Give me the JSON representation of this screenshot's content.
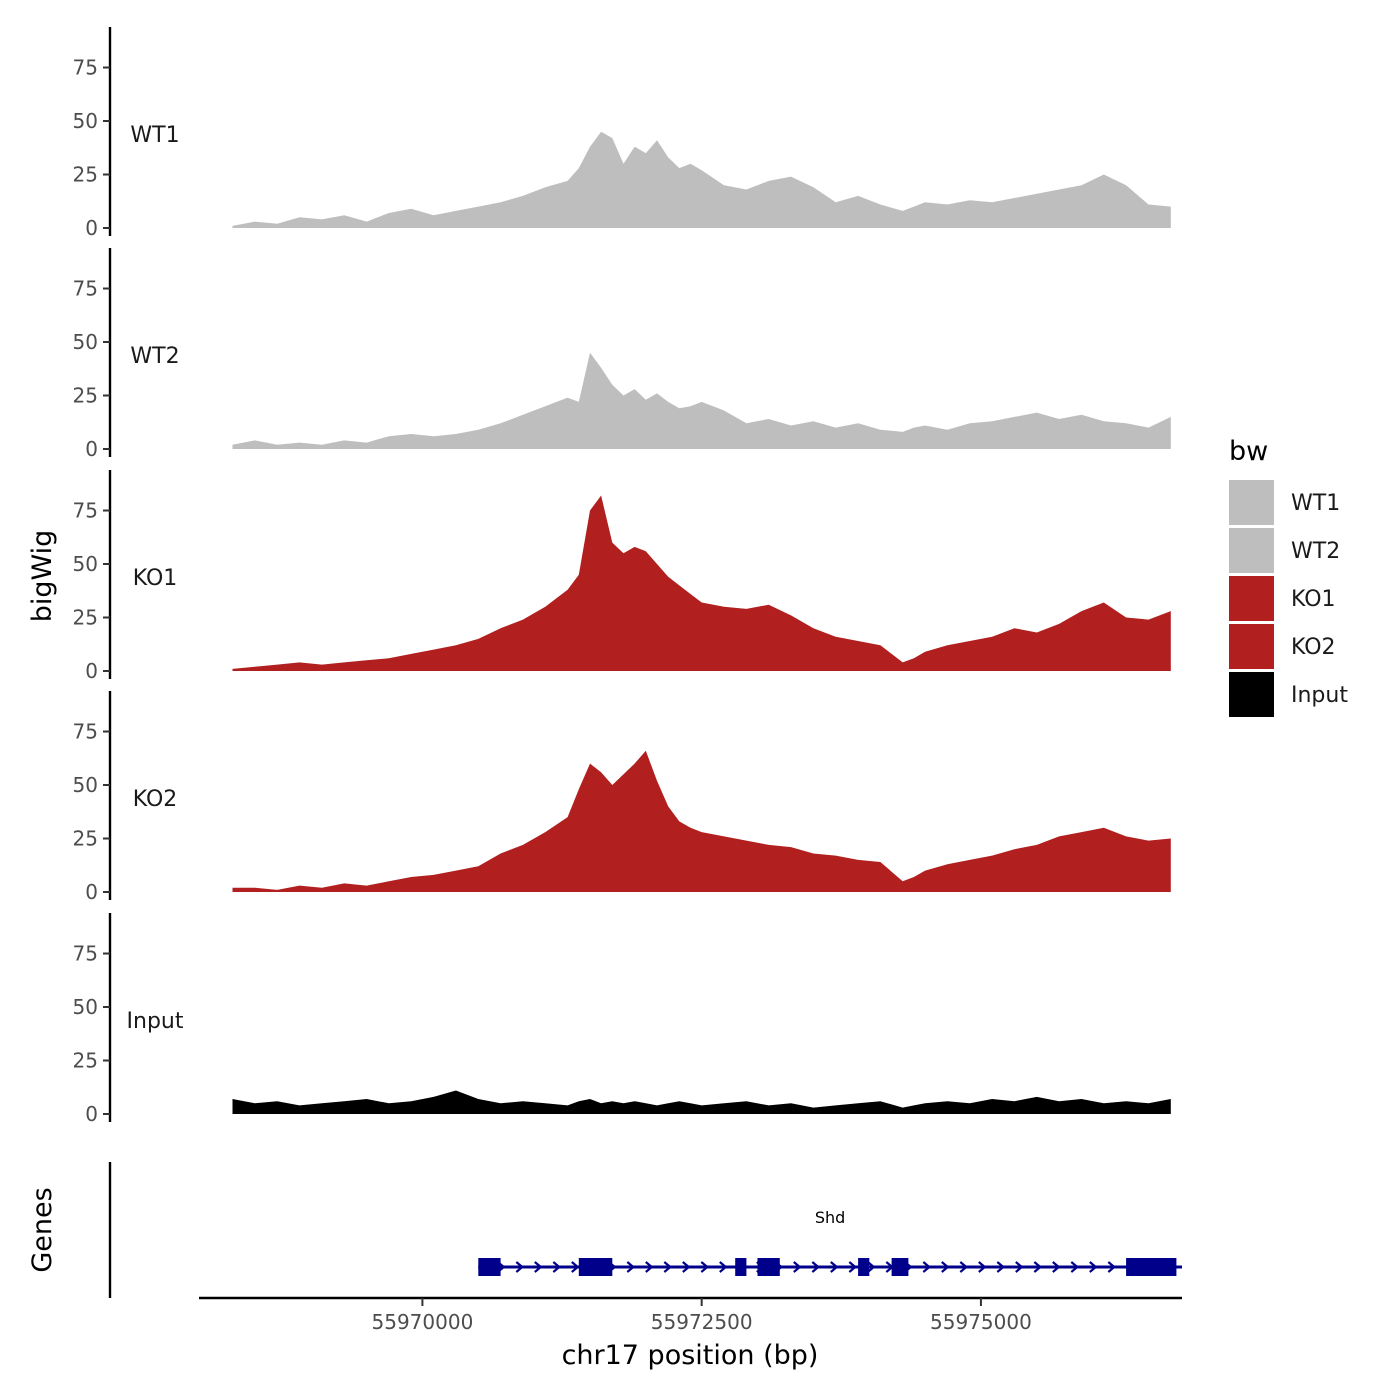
{
  "chart_data": {
    "type": "area",
    "chromosome": "chr17",
    "xlabel": "chr17 position (bp)",
    "ylabel": "bigWig",
    "genes_label": "Genes",
    "xlim": [
      55968000,
      55976800
    ],
    "x_ticks": [
      55970000,
      55972500,
      55975000
    ],
    "x_tick_labels": [
      "55970000",
      "55972500",
      "55975000"
    ],
    "ylim": [
      0,
      93
    ],
    "y_ticks": [
      0,
      25,
      50,
      75
    ],
    "y_tick_labels": [
      "0",
      "25",
      "50",
      "75"
    ],
    "legend": {
      "title": "bw",
      "position": "right",
      "entries": [
        {
          "name": "WT1",
          "color": "#bebebe"
        },
        {
          "name": "WT2",
          "color": "#bebebe"
        },
        {
          "name": "KO1",
          "color": "#b21f1f"
        },
        {
          "name": "KO2",
          "color": "#b21f1f"
        },
        {
          "name": "Input",
          "color": "#000000"
        }
      ]
    },
    "x": [
      55968300,
      55968500,
      55968700,
      55968900,
      55969100,
      55969300,
      55969500,
      55969700,
      55969900,
      55970100,
      55970300,
      55970500,
      55970700,
      55970900,
      55971100,
      55971300,
      55971400,
      55971500,
      55971600,
      55971700,
      55971800,
      55971900,
      55972000,
      55972100,
      55972200,
      55972300,
      55972400,
      55972500,
      55972700,
      55972900,
      55973100,
      55973300,
      55973500,
      55973700,
      55973900,
      55974100,
      55974300,
      55974400,
      55974500,
      55974700,
      55974900,
      55975100,
      55975300,
      55975500,
      55975700,
      55975900,
      55976100,
      55976300,
      55976500,
      55976700
    ],
    "series": [
      {
        "name": "WT1",
        "color": "#bebebe",
        "values": [
          1,
          3,
          2,
          5,
          4,
          6,
          3,
          7,
          9,
          6,
          8,
          10,
          12,
          15,
          19,
          22,
          28,
          38,
          45,
          42,
          30,
          38,
          35,
          41,
          33,
          28,
          30,
          27,
          20,
          18,
          22,
          24,
          19,
          12,
          15,
          11,
          8,
          10,
          12,
          11,
          13,
          12,
          14,
          16,
          18,
          20,
          25,
          20,
          11,
          10
        ]
      },
      {
        "name": "WT2",
        "color": "#bebebe",
        "values": [
          2,
          4,
          2,
          3,
          2,
          4,
          3,
          6,
          7,
          6,
          7,
          9,
          12,
          16,
          20,
          24,
          22,
          45,
          38,
          30,
          25,
          28,
          23,
          26,
          22,
          19,
          20,
          22,
          18,
          12,
          14,
          11,
          13,
          10,
          12,
          9,
          8,
          10,
          11,
          9,
          12,
          13,
          15,
          17,
          14,
          16,
          13,
          12,
          10,
          15
        ]
      },
      {
        "name": "KO1",
        "color": "#b21f1f",
        "values": [
          1,
          2,
          3,
          4,
          3,
          4,
          5,
          6,
          8,
          10,
          12,
          15,
          20,
          24,
          30,
          38,
          45,
          75,
          82,
          60,
          55,
          58,
          56,
          50,
          44,
          40,
          36,
          32,
          30,
          29,
          31,
          26,
          20,
          16,
          14,
          12,
          4,
          6,
          9,
          12,
          14,
          16,
          20,
          18,
          22,
          28,
          32,
          25,
          24,
          28
        ]
      },
      {
        "name": "KO2",
        "color": "#b21f1f",
        "values": [
          2,
          2,
          1,
          3,
          2,
          4,
          3,
          5,
          7,
          8,
          10,
          12,
          18,
          22,
          28,
          35,
          48,
          60,
          56,
          50,
          55,
          60,
          66,
          52,
          40,
          33,
          30,
          28,
          26,
          24,
          22,
          21,
          18,
          17,
          15,
          14,
          5,
          7,
          10,
          13,
          15,
          17,
          20,
          22,
          26,
          28,
          30,
          26,
          24,
          25
        ]
      },
      {
        "name": "Input",
        "color": "#000000",
        "values": [
          7,
          5,
          6,
          4,
          5,
          6,
          7,
          5,
          6,
          8,
          11,
          7,
          5,
          6,
          5,
          4,
          6,
          7,
          5,
          6,
          5,
          6,
          5,
          4,
          5,
          6,
          5,
          4,
          5,
          6,
          4,
          5,
          3,
          4,
          5,
          6,
          3,
          4,
          5,
          6,
          5,
          7,
          6,
          8,
          6,
          7,
          5,
          6,
          5,
          7
        ]
      }
    ],
    "gene": {
      "name": "Shd",
      "color": "#00008b",
      "strand": "+",
      "start": 55970500,
      "end": 55976800,
      "exons": [
        [
          55970500,
          55970700
        ],
        [
          55971400,
          55971700
        ],
        [
          55972800,
          55972900
        ],
        [
          55973000,
          55973200
        ],
        [
          55973900,
          55974000
        ],
        [
          55974200,
          55974350
        ],
        [
          55976300,
          55976750
        ]
      ]
    }
  }
}
